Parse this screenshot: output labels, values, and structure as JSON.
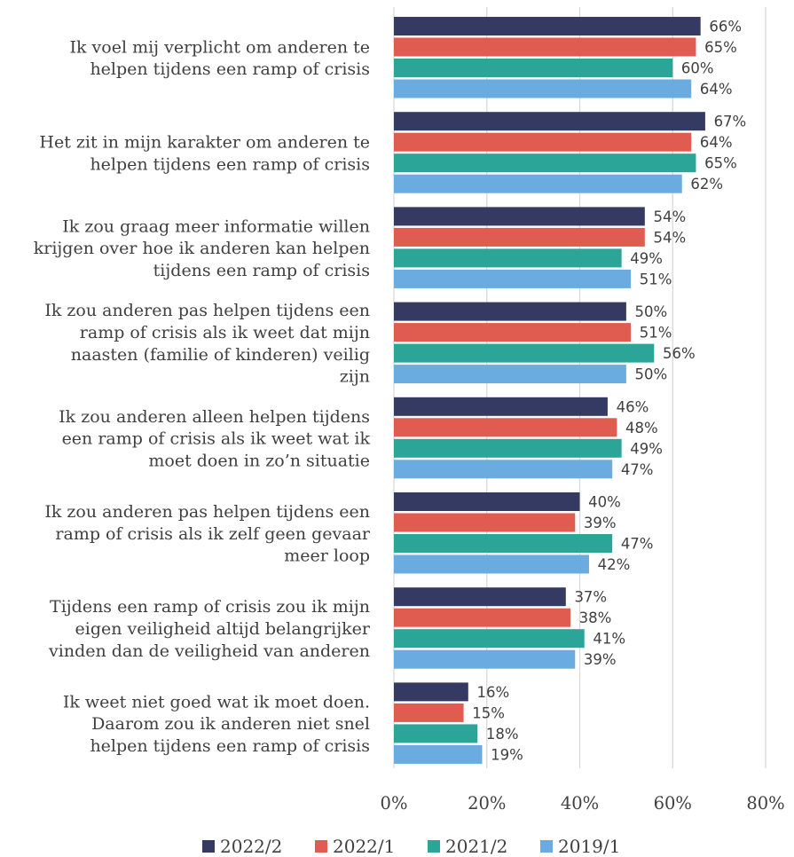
{
  "chart_data": {
    "type": "bar",
    "orientation": "horizontal",
    "categories": [
      [
        "Ik voel mij verplicht om anderen te",
        "helpen tijdens een ramp of crisis"
      ],
      [
        "Het zit in mijn karakter om anderen te",
        "helpen tijdens een ramp of crisis"
      ],
      [
        "Ik zou graag meer informatie willen",
        "krijgen over hoe ik anderen kan helpen",
        "tijdens een ramp of crisis"
      ],
      [
        "Ik zou anderen pas helpen tijdens een",
        "ramp of crisis als ik weet dat mijn",
        "naasten (familie of kinderen) veilig",
        "zijn"
      ],
      [
        "Ik zou anderen alleen helpen tijdens",
        "een ramp of crisis als ik weet wat ik",
        "moet doen in zo’n situatie"
      ],
      [
        "Ik zou anderen pas helpen tijdens een",
        "ramp of crisis als ik zelf geen gevaar",
        "meer loop"
      ],
      [
        "Tijdens een ramp of crisis zou ik mijn",
        "eigen veiligheid altijd belangrijker",
        "vinden dan de veiligheid van anderen"
      ],
      [
        "Ik weet niet goed wat ik moet doen.",
        "Daarom zou ik anderen niet snel",
        "helpen tijdens een ramp of crisis"
      ]
    ],
    "series": [
      {
        "name": "2022/2",
        "color": "#353a63",
        "values": [
          66,
          67,
          54,
          50,
          46,
          40,
          37,
          16
        ]
      },
      {
        "name": "2022/1",
        "color": "#e05b50",
        "values": [
          65,
          64,
          54,
          51,
          48,
          39,
          38,
          15
        ]
      },
      {
        "name": "2021/2",
        "color": "#2aa597",
        "values": [
          60,
          65,
          49,
          56,
          49,
          47,
          41,
          18
        ]
      },
      {
        "name": "2019/1",
        "color": "#6aace0",
        "values": [
          64,
          62,
          51,
          50,
          47,
          42,
          39,
          19
        ]
      }
    ],
    "value_suffix": "%",
    "xlim": [
      0,
      80
    ],
    "xticks": [
      "0%",
      "20%",
      "40%",
      "60%",
      "80%"
    ],
    "grid": "vertical",
    "legend": "bottom",
    "title": "",
    "xlabel": "",
    "ylabel": ""
  }
}
